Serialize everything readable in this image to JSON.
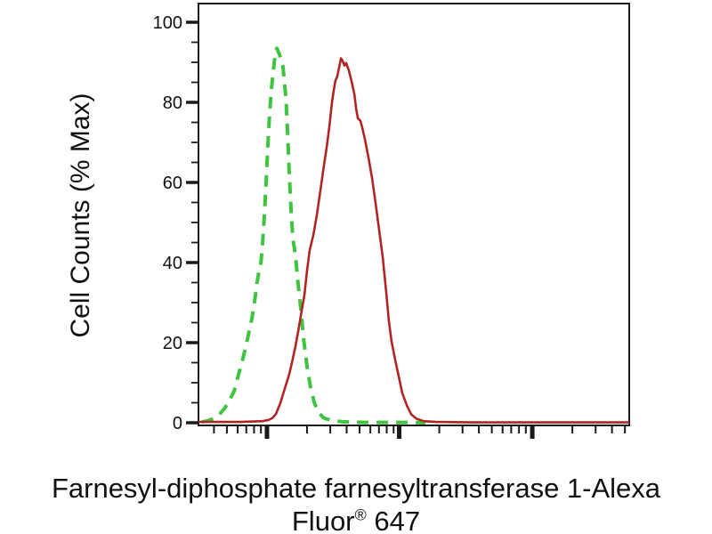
{
  "figure": {
    "background": "#ffffff",
    "title_line1": "Farnesyl-diphosphate farnesyltransferase 1-Alexa",
    "title_line2": {
      "pre": "Fluor",
      "sup": "®",
      "post": " 647"
    }
  },
  "chart_data": {
    "type": "line",
    "subtype": "flow-cytometry-histogram-overlay",
    "title": "Farnesyl-diphosphate farnesyltransferase 1-Alexa Fluor® 647",
    "xlabel": "",
    "ylabel": "Cell Counts (% Max)",
    "grid": false,
    "legend": null,
    "y_axis": {
      "min": 0,
      "max": 100,
      "major_ticks": [
        0,
        20,
        40,
        60,
        80,
        100
      ],
      "major_tick_labels": [
        "0",
        "20",
        "40",
        "60",
        "80",
        "100"
      ],
      "minor_step": 5
    },
    "x_axis": {
      "scale": "log",
      "labels_visible": false,
      "major_tick_positions": [
        0.159,
        0.466,
        0.775
      ],
      "minor_tick_positions": [
        0.036,
        0.066,
        0.091,
        0.111,
        0.129,
        0.145,
        0.252,
        0.306,
        0.344,
        0.374,
        0.399,
        0.419,
        0.437,
        0.453,
        0.559,
        0.613,
        0.651,
        0.681,
        0.706,
        0.726,
        0.744,
        0.76,
        0.868,
        0.922,
        0.96,
        0.99
      ]
    },
    "series": [
      {
        "id": "green-dashed-control",
        "color": "#3fc43f",
        "line_style": "dashed",
        "stroke_width": 4,
        "dash_pattern": [
          13,
          9
        ],
        "points_format": "[x_fraction_of_axis, percent_of_max]",
        "points": [
          [
            0.008,
            0.2
          ],
          [
            0.021,
            0.5
          ],
          [
            0.035,
            1
          ],
          [
            0.048,
            2
          ],
          [
            0.06,
            3.5
          ],
          [
            0.072,
            5.5
          ],
          [
            0.083,
            8
          ],
          [
            0.093,
            12
          ],
          [
            0.103,
            16
          ],
          [
            0.114,
            21
          ],
          [
            0.124,
            26
          ],
          [
            0.13,
            30
          ],
          [
            0.136,
            35
          ],
          [
            0.141,
            38
          ],
          [
            0.145,
            40
          ],
          [
            0.149,
            45
          ],
          [
            0.153,
            52
          ],
          [
            0.157,
            60
          ],
          [
            0.161,
            69
          ],
          [
            0.165,
            77
          ],
          [
            0.169,
            83
          ],
          [
            0.174,
            88
          ],
          [
            0.178,
            92
          ],
          [
            0.182,
            93.5
          ],
          [
            0.188,
            92
          ],
          [
            0.196,
            89
          ],
          [
            0.203,
            81
          ],
          [
            0.207,
            72
          ],
          [
            0.211,
            62
          ],
          [
            0.215,
            53
          ],
          [
            0.219,
            46
          ],
          [
            0.225,
            42
          ],
          [
            0.231,
            35
          ],
          [
            0.238,
            28
          ],
          [
            0.244,
            21
          ],
          [
            0.252,
            14
          ],
          [
            0.26,
            9
          ],
          [
            0.269,
            5
          ],
          [
            0.279,
            2.5
          ],
          [
            0.291,
            1.2
          ],
          [
            0.308,
            0.6
          ],
          [
            0.335,
            0.25
          ],
          [
            0.386,
            0.1
          ],
          [
            0.479,
            0.1
          ],
          [
            0.527,
            0
          ]
        ]
      },
      {
        "id": "red-solid-antibody",
        "color": "#b22424",
        "line_style": "solid",
        "stroke_width": 2.6,
        "points_format": "[x_fraction_of_axis, percent_of_max]",
        "points": [
          [
            0.0,
            0.2
          ],
          [
            0.097,
            0.2
          ],
          [
            0.149,
            0.4
          ],
          [
            0.163,
            0.7
          ],
          [
            0.172,
            1.2
          ],
          [
            0.18,
            2.2
          ],
          [
            0.19,
            4.9
          ],
          [
            0.2,
            8.4
          ],
          [
            0.211,
            12.2
          ],
          [
            0.217,
            15
          ],
          [
            0.225,
            19
          ],
          [
            0.231,
            22.5
          ],
          [
            0.238,
            27
          ],
          [
            0.246,
            32
          ],
          [
            0.252,
            38
          ],
          [
            0.258,
            43
          ],
          [
            0.267,
            47
          ],
          [
            0.275,
            52
          ],
          [
            0.283,
            58
          ],
          [
            0.291,
            64
          ],
          [
            0.298,
            69
          ],
          [
            0.304,
            74
          ],
          [
            0.31,
            80
          ],
          [
            0.314,
            83
          ],
          [
            0.318,
            85.5
          ],
          [
            0.322,
            86.3
          ],
          [
            0.326,
            88.5
          ],
          [
            0.331,
            91
          ],
          [
            0.335,
            90.3
          ],
          [
            0.339,
            89.2
          ],
          [
            0.343,
            89.8
          ],
          [
            0.349,
            88
          ],
          [
            0.355,
            85.5
          ],
          [
            0.362,
            82
          ],
          [
            0.366,
            78.5
          ],
          [
            0.37,
            76
          ],
          [
            0.376,
            75.4
          ],
          [
            0.38,
            73.8
          ],
          [
            0.386,
            71
          ],
          [
            0.395,
            66
          ],
          [
            0.403,
            61
          ],
          [
            0.411,
            55
          ],
          [
            0.419,
            48.5
          ],
          [
            0.428,
            41
          ],
          [
            0.436,
            32.5
          ],
          [
            0.442,
            25.5
          ],
          [
            0.448,
            20.5
          ],
          [
            0.457,
            15.5
          ],
          [
            0.465,
            11.5
          ],
          [
            0.473,
            7.5
          ],
          [
            0.484,
            4.2
          ],
          [
            0.494,
            2.1
          ],
          [
            0.506,
            1.0
          ],
          [
            0.523,
            0.4
          ],
          [
            0.552,
            0.2
          ],
          [
            0.634,
            0.1
          ],
          [
            1.0,
            0.1
          ]
        ]
      }
    ]
  }
}
